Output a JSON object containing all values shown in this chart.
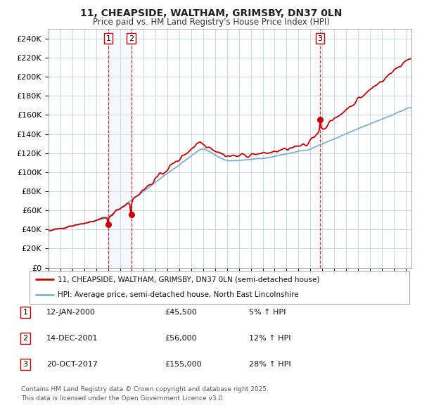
{
  "title_line1": "11, CHEAPSIDE, WALTHAM, GRIMSBY, DN37 0LN",
  "title_line2": "Price paid vs. HM Land Registry's House Price Index (HPI)",
  "background_color": "#ffffff",
  "plot_bg_color": "#ffffff",
  "grid_color": "#c8d4e0",
  "sale_dates_str": [
    "2000-01-12",
    "2001-12-14",
    "2017-10-20"
  ],
  "sale_prices": [
    45500,
    56000,
    155000
  ],
  "sale_labels": [
    "1",
    "2",
    "3"
  ],
  "legend_line1": "11, CHEAPSIDE, WALTHAM, GRIMSBY, DN37 0LN (semi-detached house)",
  "legend_line2": "HPI: Average price, semi-detached house, North East Lincolnshire",
  "table_entries": [
    {
      "label": "1",
      "date": "12-JAN-2000",
      "price": "£45,500",
      "change": "5% ↑ HPI"
    },
    {
      "label": "2",
      "date": "14-DEC-2001",
      "price": "£56,000",
      "change": "12% ↑ HPI"
    },
    {
      "label": "3",
      "date": "20-OCT-2017",
      "price": "£155,000",
      "change": "28% ↑ HPI"
    }
  ],
  "footnote_line1": "Contains HM Land Registry data © Crown copyright and database right 2025.",
  "footnote_line2": "This data is licensed under the Open Government Licence v3.0.",
  "line_color_red": "#cc0000",
  "line_color_blue": "#7bafd4",
  "marker_color": "#cc0000",
  "dashed_color": "#cc0000",
  "shade_color": "#ddeeff",
  "ylim_max": 250000,
  "ylim_min": 0,
  "yticks": [
    0,
    20000,
    40000,
    60000,
    80000,
    100000,
    120000,
    140000,
    160000,
    180000,
    200000,
    220000,
    240000
  ],
  "ytick_labels": [
    "£0",
    "£20K",
    "£40K",
    "£60K",
    "£80K",
    "£100K",
    "£120K",
    "£140K",
    "£160K",
    "£180K",
    "£200K",
    "£220K",
    "£240K"
  ],
  "xstart_year": 1995,
  "xend_year": 2025
}
